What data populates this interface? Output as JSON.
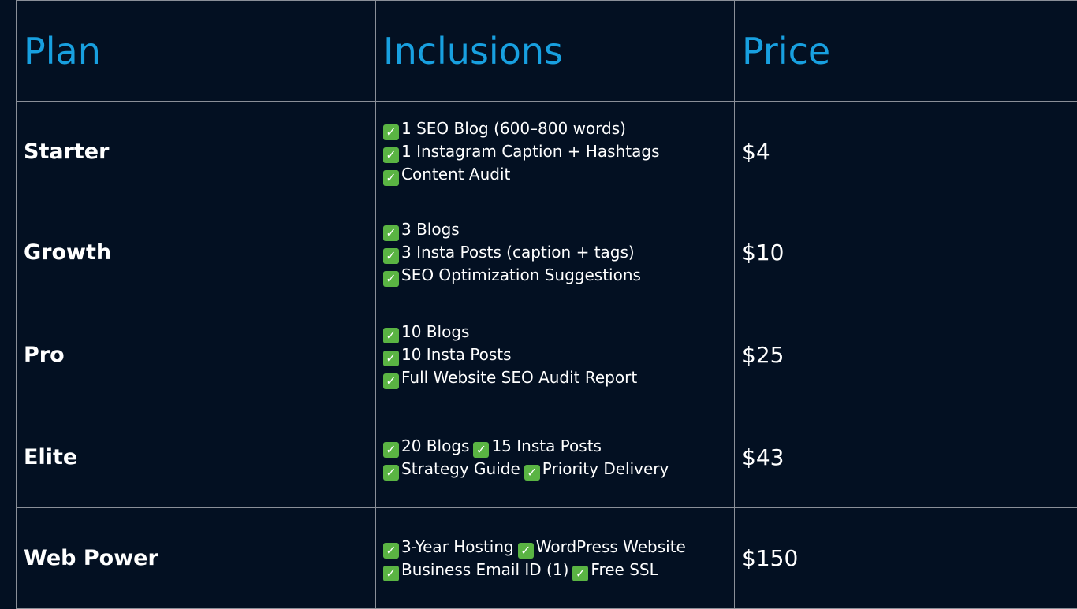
{
  "table": {
    "headers": {
      "plan": "Plan",
      "inclusions": "Inclusions",
      "price": "Price"
    },
    "rows": [
      {
        "plan": "Starter",
        "price": "$4",
        "lines": [
          [
            "1 SEO Blog (600–800 words)"
          ],
          [
            "1 Instagram Caption + Hashtags"
          ],
          [
            "Content Audit"
          ]
        ]
      },
      {
        "plan": "Growth",
        "price": "$10",
        "lines": [
          [
            "3 Blogs"
          ],
          [
            "3 Insta Posts (caption + tags)"
          ],
          [
            "SEO Optimization Suggestions"
          ]
        ]
      },
      {
        "plan": "Pro",
        "price": "$25",
        "lines": [
          [
            "10 Blogs"
          ],
          [
            "10 Insta Posts"
          ],
          [
            "Full Website SEO Audit Report"
          ]
        ]
      },
      {
        "plan": "Elite",
        "price": "$43",
        "lines": [
          [
            "20 Blogs",
            "15 Insta Posts"
          ],
          [
            "Strategy Guide",
            "Priority Delivery"
          ]
        ]
      },
      {
        "plan": "Web Power",
        "price": "$150",
        "lines": [
          [
            "3-Year Hosting",
            "WordPress Website"
          ],
          [
            "Business Email ID (1)",
            "Free SSL"
          ]
        ]
      }
    ]
  },
  "icons": {
    "check": "check-mark-icon"
  },
  "colors": {
    "background": "#031022",
    "header_text": "#18a0e0",
    "check_bg": "#5ab443",
    "grid": "#8a8f98"
  }
}
